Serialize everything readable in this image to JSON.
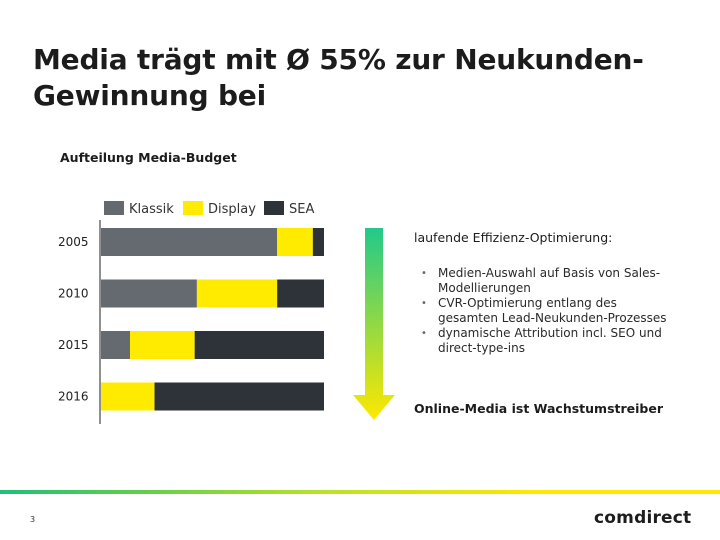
{
  "slide": {
    "title": "Media trägt mit Ø 55% zur Neukunden-Gewinnung bei",
    "page_number": "3",
    "logo_text": "comdirect"
  },
  "chart_data": {
    "type": "bar",
    "orientation": "horizontal",
    "stacked": true,
    "title": "Aufteilung Media-Budget",
    "categories": [
      "2005",
      "2010",
      "2015",
      "2016"
    ],
    "series": [
      {
        "name": "Klassik",
        "color": "#646a70",
        "values": [
          79,
          43,
          13,
          0
        ]
      },
      {
        "name": "Display",
        "color": "#ffeb00",
        "values": [
          16,
          36,
          29,
          24
        ]
      },
      {
        "name": "SEA",
        "color": "#2d3338",
        "values": [
          5,
          21,
          58,
          76
        ]
      }
    ],
    "xlim": [
      0,
      100
    ],
    "legend_position": "top",
    "grid": false
  },
  "right_panel": {
    "heading": "laufende Effizienz-Optimierung:",
    "bullets": [
      "Medien-Auswahl auf Basis von Sales-Modellierungen",
      "CVR-Optimierung entlang des gesamten Lead-Neukunden-Prozesses",
      "dynamische Attribution incl. SEO und direct-type-ins"
    ],
    "bullet_symbol": "•",
    "conclusion": "Online-Media ist Wachstumstreiber",
    "arrow_colors": [
      "#22c98a",
      "#ffe800"
    ]
  }
}
